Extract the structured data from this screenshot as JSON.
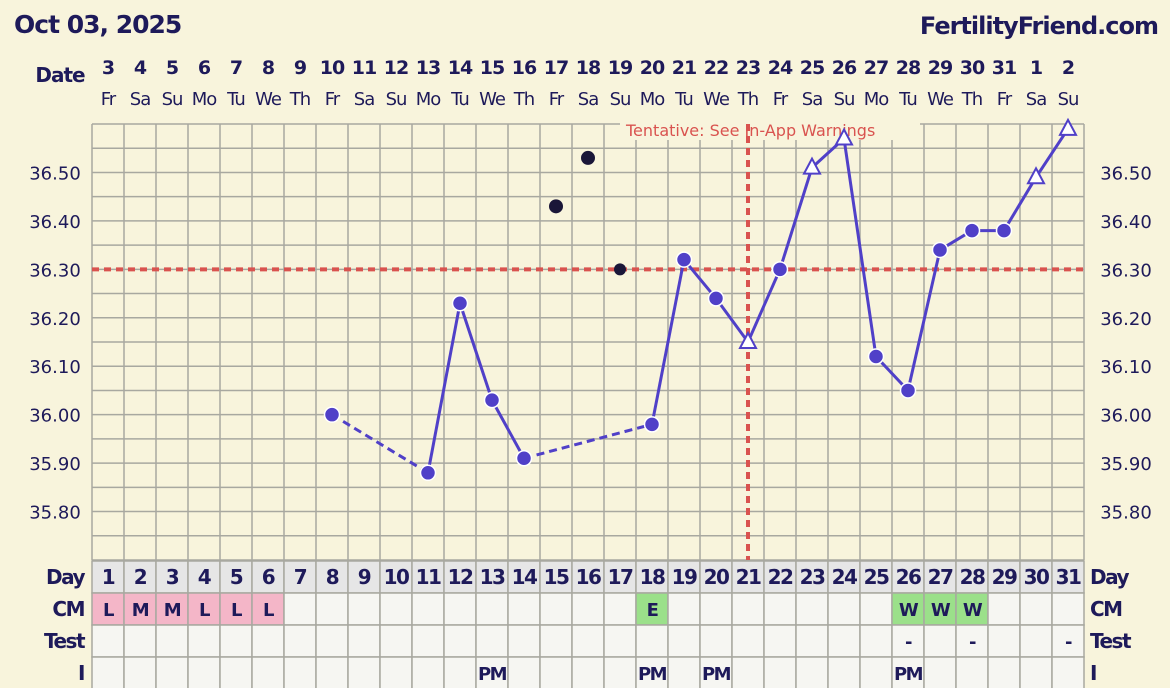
{
  "header": {
    "date": "Oct 03, 2025",
    "site": "FertilityFriend.com"
  },
  "chart_data": {
    "type": "line",
    "ylim": [
      35.7,
      36.6
    ],
    "yticks": [
      "36.50",
      "36.40",
      "36.30",
      "36.20",
      "36.10",
      "36.00",
      "35.90",
      "35.80"
    ],
    "date_label": "Date",
    "dates": [
      "3",
      "4",
      "5",
      "6",
      "7",
      "8",
      "9",
      "10",
      "11",
      "12",
      "13",
      "14",
      "15",
      "16",
      "17",
      "18",
      "19",
      "20",
      "21",
      "22",
      "23",
      "24",
      "25",
      "26",
      "27",
      "28",
      "29",
      "30",
      "31",
      "1",
      "2"
    ],
    "weekdays": [
      "Fr",
      "Sa",
      "Su",
      "Mo",
      "Tu",
      "We",
      "Th",
      "Fr",
      "Sa",
      "Su",
      "Mo",
      "Tu",
      "We",
      "Th",
      "Fr",
      "Sa",
      "Su",
      "Mo",
      "Tu",
      "We",
      "Th",
      "Fr",
      "Sa",
      "Su",
      "Mo",
      "Tu",
      "We",
      "Th",
      "Fr",
      "Sa",
      "Su"
    ],
    "annotation": "Tentative: See In-App Warnings",
    "coverline": 36.3,
    "ovulation_day": 21,
    "grid": true,
    "points": [
      {
        "day": 8,
        "temp": 36.0,
        "marker": "circle"
      },
      {
        "day": 11,
        "temp": 35.88,
        "marker": "circle"
      },
      {
        "day": 12,
        "temp": 36.23,
        "marker": "circle"
      },
      {
        "day": 13,
        "temp": 36.03,
        "marker": "circle"
      },
      {
        "day": 14,
        "temp": 35.91,
        "marker": "circle"
      },
      {
        "day": 15,
        "temp": 36.43,
        "marker": "discarded"
      },
      {
        "day": 16,
        "temp": 36.53,
        "marker": "discarded"
      },
      {
        "day": 17,
        "temp": 36.3,
        "marker": "discarded"
      },
      {
        "day": 18,
        "temp": 35.98,
        "marker": "circle"
      },
      {
        "day": 19,
        "temp": 36.32,
        "marker": "circle"
      },
      {
        "day": 20,
        "temp": 36.24,
        "marker": "circle"
      },
      {
        "day": 21,
        "temp": 36.15,
        "marker": "triangle"
      },
      {
        "day": 22,
        "temp": 36.3,
        "marker": "circle"
      },
      {
        "day": 23,
        "temp": 36.51,
        "marker": "triangle"
      },
      {
        "day": 24,
        "temp": 36.57,
        "marker": "triangle"
      },
      {
        "day": 25,
        "temp": 36.12,
        "marker": "circle"
      },
      {
        "day": 26,
        "temp": 36.05,
        "marker": "circle"
      },
      {
        "day": 27,
        "temp": 36.34,
        "marker": "circle"
      },
      {
        "day": 28,
        "temp": 36.38,
        "marker": "circle"
      },
      {
        "day": 29,
        "temp": 36.38,
        "marker": "circle"
      },
      {
        "day": 30,
        "temp": 36.49,
        "marker": "triangle"
      },
      {
        "day": 31,
        "temp": 36.59,
        "marker": "triangle"
      }
    ],
    "dashed_segments": [
      [
        8,
        11
      ],
      [
        14,
        18
      ]
    ],
    "rows": [
      {
        "label": "Day",
        "values": [
          "1",
          "2",
          "3",
          "4",
          "5",
          "6",
          "7",
          "8",
          "9",
          "10",
          "11",
          "12",
          "13",
          "14",
          "15",
          "16",
          "17",
          "18",
          "19",
          "20",
          "21",
          "22",
          "23",
          "24",
          "25",
          "26",
          "27",
          "28",
          "29",
          "30",
          "31"
        ]
      },
      {
        "label": "CM",
        "values": [
          "L",
          "M",
          "M",
          "L",
          "L",
          "L",
          "",
          "",
          "",
          "",
          "",
          "",
          "",
          "",
          "",
          "",
          "",
          "E",
          "",
          "",
          "",
          "",
          "",
          "",
          "",
          "W",
          "W",
          "W",
          "",
          "",
          ""
        ]
      },
      {
        "label": "Test",
        "values": [
          "",
          "",
          "",
          "",
          "",
          "",
          "",
          "",
          "",
          "",
          "",
          "",
          "",
          "",
          "",
          "",
          "",
          "",
          "",
          "",
          "",
          "",
          "",
          "",
          "",
          "-",
          "",
          "-",
          "",
          "",
          "-"
        ]
      },
      {
        "label": "I",
        "values": [
          "",
          "",
          "",
          "",
          "",
          "",
          "",
          "",
          "",
          "",
          "",
          "",
          "PM",
          "",
          "",
          "",
          "",
          "PM",
          "",
          "PM",
          "",
          "",
          "",
          "",
          "",
          "PM",
          "",
          "",
          "",
          "",
          ""
        ]
      }
    ],
    "colors": {
      "line": "#5040c8",
      "coverline": "#d9534f",
      "menses": "#f4b6c8",
      "fertile": "#9be08a",
      "background": "#f8f4dc"
    }
  }
}
